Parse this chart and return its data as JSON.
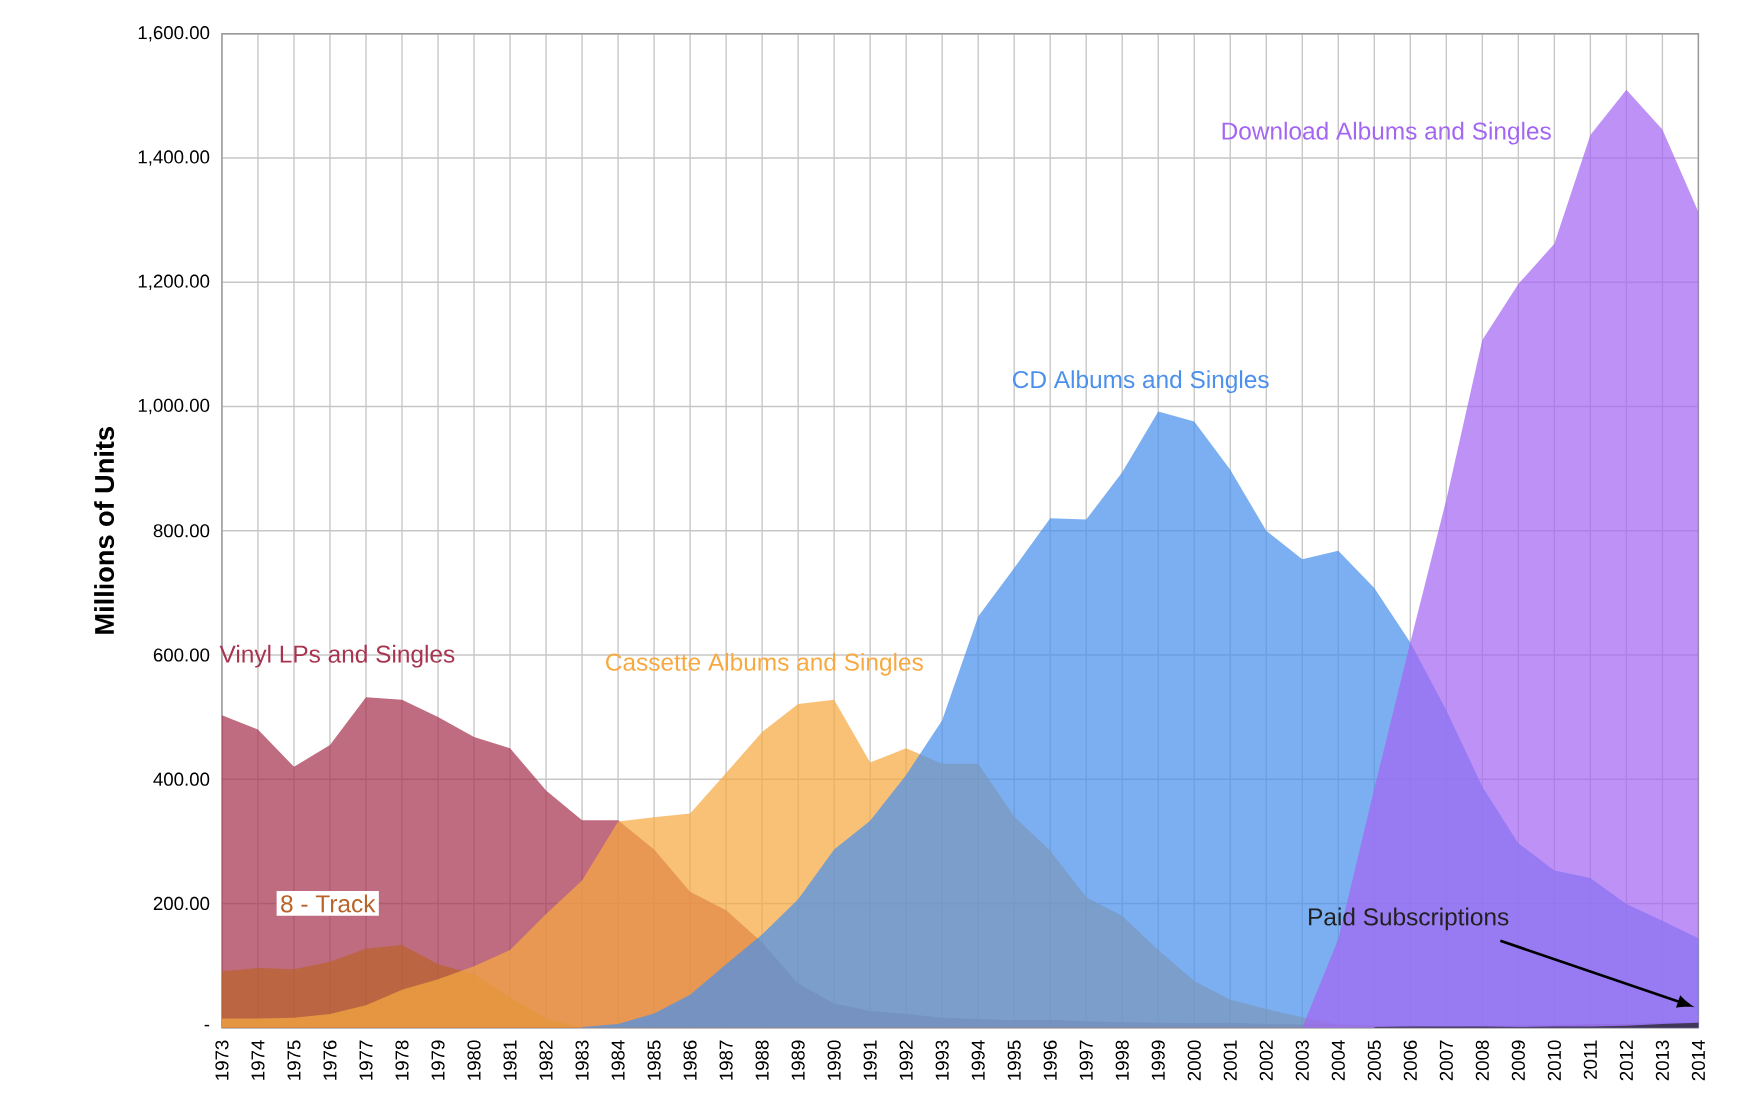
{
  "chart_data": {
    "type": "area",
    "ylabel": "Millions of Units",
    "xlim": [
      1973,
      2014
    ],
    "xticks": [
      1973,
      1974,
      1975,
      1976,
      1977,
      1978,
      1979,
      1980,
      1981,
      1982,
      1983,
      1984,
      1985,
      1986,
      1987,
      1988,
      1989,
      1990,
      1991,
      1992,
      1993,
      1994,
      1995,
      1996,
      1997,
      1998,
      1999,
      2000,
      2001,
      2002,
      2003,
      2004,
      2005,
      2006,
      2007,
      2008,
      2009,
      2010,
      2011,
      2012,
      2013,
      2014
    ],
    "ylim": [
      0,
      1600
    ],
    "yticks": [
      {
        "value": 0,
        "label": "-"
      },
      {
        "value": 200,
        "label": "200.00"
      },
      {
        "value": 400,
        "label": "400.00"
      },
      {
        "value": 600,
        "label": "600.00"
      },
      {
        "value": 800,
        "label": "800.00"
      },
      {
        "value": 1000,
        "label": "1,000.00"
      },
      {
        "value": 1200,
        "label": "1,200.00"
      },
      {
        "value": 1400,
        "label": "1,400.00"
      },
      {
        "value": 1600,
        "label": "1,600.00"
      }
    ],
    "grid": true,
    "series": [
      {
        "name": "Vinyl LPs and Singles",
        "color": "#a8334f",
        "x": [
          1973,
          1974,
          1975,
          1976,
          1977,
          1978,
          1979,
          1980,
          1981,
          1982,
          1983,
          1984,
          1985,
          1986,
          1987,
          1988,
          1989,
          1990,
          1991,
          1992,
          1993,
          1994,
          1995,
          1996,
          1997,
          1998,
          1999,
          2000,
          2001,
          2002,
          2003,
          2004,
          2005,
          2006,
          2007,
          2008,
          2009,
          2010,
          2011,
          2012,
          2013,
          2014
        ],
        "values": [
          503,
          480,
          420,
          455,
          532,
          528,
          500,
          468,
          450,
          382,
          334,
          334,
          287,
          219,
          189,
          137,
          71,
          39,
          27,
          22,
          16,
          14,
          12,
          13,
          10,
          9,
          8,
          7,
          8,
          6,
          5,
          5,
          3,
          3,
          2,
          3,
          4,
          4,
          6,
          6,
          8,
          9
        ]
      },
      {
        "name": "8 - Track",
        "color": "#b8632a",
        "x": [
          1973,
          1974,
          1975,
          1976,
          1977,
          1978,
          1979,
          1980,
          1981,
          1982,
          1983
        ],
        "values": [
          91,
          96,
          94,
          106,
          127,
          133,
          102,
          86,
          49,
          14,
          0
        ]
      },
      {
        "name": "Cassette Albums and Singles",
        "color": "#f7a940",
        "x": [
          1973,
          1974,
          1975,
          1976,
          1977,
          1978,
          1979,
          1980,
          1981,
          1982,
          1983,
          1984,
          1985,
          1986,
          1987,
          1988,
          1989,
          1990,
          1991,
          1992,
          1993,
          1994,
          1995,
          1996,
          1997,
          1998,
          1999,
          2000,
          2001,
          2002,
          2003,
          2004,
          2005,
          2006,
          2007,
          2008
        ],
        "values": [
          15,
          15,
          16,
          22,
          36,
          61,
          78,
          99,
          125,
          183,
          237,
          332,
          339,
          345,
          410,
          476,
          521,
          528,
          427,
          450,
          425,
          425,
          340,
          285,
          210,
          180,
          125,
          75,
          45,
          30,
          17,
          5,
          2,
          1,
          0,
          0
        ]
      },
      {
        "name": "CD Albums and Singles",
        "color": "#4a90ec",
        "x": [
          1983,
          1984,
          1985,
          1986,
          1987,
          1988,
          1989,
          1990,
          1991,
          1992,
          1993,
          1994,
          1995,
          1996,
          1997,
          1998,
          1999,
          2000,
          2001,
          2002,
          2003,
          2004,
          2005,
          2006,
          2007,
          2008,
          2009,
          2010,
          2011,
          2012,
          2013,
          2014
        ],
        "values": [
          1,
          6,
          23,
          53,
          102,
          150,
          207,
          287,
          333,
          407,
          495,
          662,
          740,
          820,
          818,
          894,
          992,
          976,
          898,
          800,
          754,
          768,
          708,
          620,
          511,
          388,
          297,
          253,
          241,
          199,
          172,
          144
        ]
      },
      {
        "name": "Download Albums and Singles",
        "color": "#a366f2",
        "x": [
          2003,
          2004,
          2005,
          2006,
          2007,
          2008,
          2009,
          2010,
          2011,
          2012,
          2013,
          2014
        ],
        "values": [
          0,
          143,
          385,
          620,
          850,
          1107,
          1197,
          1262,
          1437,
          1510,
          1446,
          1313
        ]
      },
      {
        "name": "Paid Subscriptions",
        "color": "#202020",
        "x": [
          2005,
          2006,
          2007,
          2008,
          2009,
          2010,
          2011,
          2012,
          2013,
          2014
        ],
        "values": [
          1,
          2,
          2,
          2,
          1,
          2,
          2,
          3,
          6,
          8
        ]
      }
    ]
  }
}
